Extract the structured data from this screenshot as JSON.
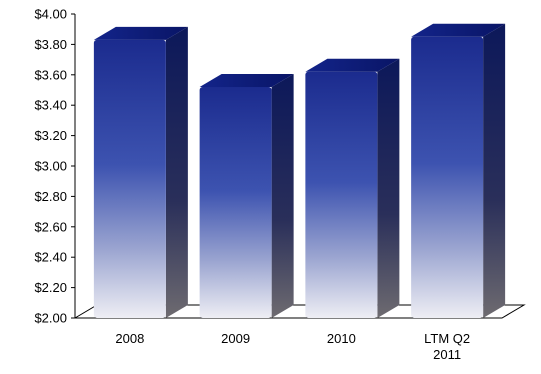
{
  "chart_data": {
    "type": "bar",
    "title": "",
    "xlabel": "",
    "ylabel": "",
    "categories": [
      "2008",
      "2009",
      "2010",
      "LTM Q2\n2011"
    ],
    "values": [
      3.83,
      3.52,
      3.62,
      3.85
    ],
    "ylim": [
      2.0,
      4.0
    ],
    "yticks": [
      2.0,
      2.2,
      2.4,
      2.6,
      2.8,
      3.0,
      3.2,
      3.4,
      3.6,
      3.8,
      4.0
    ],
    "ytick_labels": [
      "$2.00",
      "$2.20",
      "$2.40",
      "$2.60",
      "$2.80",
      "$3.00",
      "$3.20",
      "$3.40",
      "$3.60",
      "$3.80",
      "$4.00"
    ],
    "grid": false,
    "legend": "none",
    "style": "3d-column",
    "colors": {
      "bar_top": "#1a2a8c",
      "bar_bottom": "#e9e9f0",
      "bar_side": "#0f1a5c",
      "bar_cap": "#0d1f7a",
      "floor": "#ffffff",
      "axis": "#000000"
    }
  }
}
